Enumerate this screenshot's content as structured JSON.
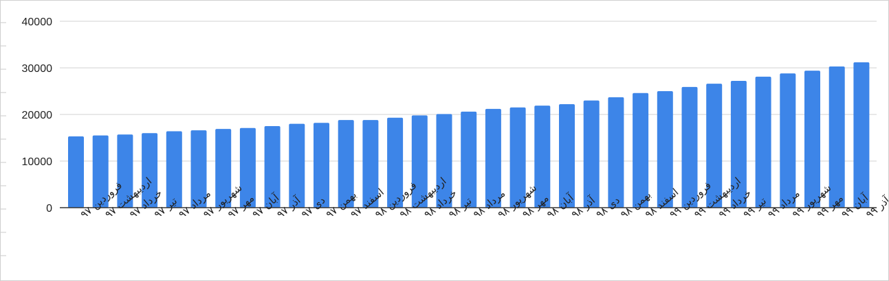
{
  "chart_data": {
    "type": "bar",
    "title": "",
    "xlabel": "",
    "ylabel": "",
    "ylim": [
      0,
      40000
    ],
    "yticks": [
      0,
      10000,
      20000,
      30000,
      40000
    ],
    "grid": true,
    "legend": "none",
    "bar_color": "#3d85e8",
    "categories": [
      "فروردین ۹۷",
      "اردیبهشت ۹۷",
      "خرداد ۹۷",
      "تیر ۹۷",
      "مرداد ۹۷",
      "شهریور ۹۷",
      "مهر ۹۷",
      "آبان ۹۷",
      "آذر ۹۷",
      "دی ۹۷",
      "بهمن ۹۷",
      "اسفند ۹۷",
      "فروردین ۹۸",
      "اردیبهشت ۹۸",
      "خرداد ۹۸",
      "تیر ۹۸",
      "مرداد ۹۸",
      "شهریور ۹۸",
      "مهر ۹۸",
      "آبان ۹۸",
      "آذر ۹۸",
      "دی ۹۸",
      "بهمن ۹۸",
      "اسفند ۹۸",
      "فروردین ۹۹",
      "اردیبهشت ۹۹",
      "خرداد ۹۹",
      "تیر ۹۹",
      "مرداد ۹۹",
      "شهریور ۹۹",
      "مهر ۹۹",
      "آبان ۹۹",
      "آذر ۹۹"
    ],
    "values": [
      15300,
      15500,
      15700,
      16000,
      16400,
      16600,
      16900,
      17100,
      17500,
      18000,
      18200,
      18800,
      18800,
      19300,
      19800,
      20100,
      20600,
      21200,
      21500,
      21900,
      22200,
      23000,
      23700,
      24600,
      25000,
      25900,
      26600,
      27200,
      28100,
      28800,
      29400,
      30300,
      31200
    ]
  }
}
